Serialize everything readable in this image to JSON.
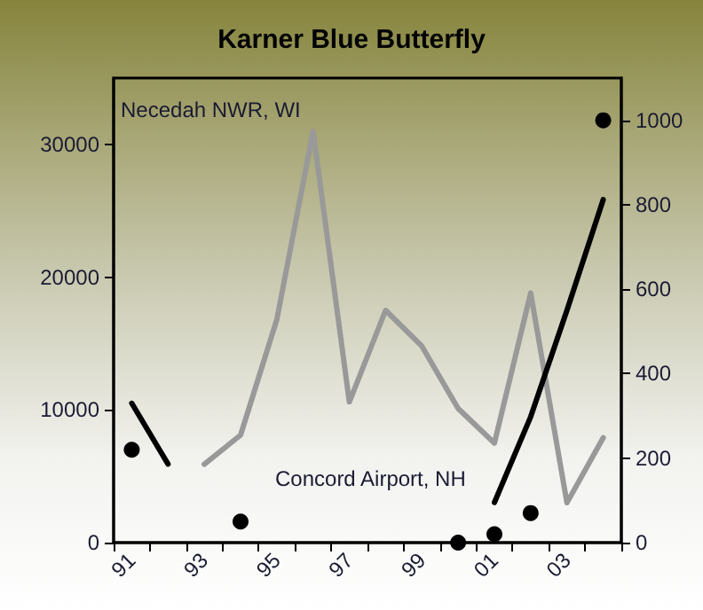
{
  "chart_data": {
    "type": "line",
    "title": "Karner Blue Butterfly",
    "annotations": [
      "Necedah NWR, WI",
      "Concord Airport, NH"
    ],
    "categories": [
      "91",
      null,
      "93",
      null,
      "95",
      null,
      "97",
      null,
      "99",
      null,
      "01",
      null,
      "03",
      null
    ],
    "ylim": [
      0,
      35000
    ],
    "yticks": [
      0,
      10000,
      20000,
      30000
    ],
    "y2lim": [
      0,
      1100
    ],
    "y2ticks": [
      0,
      200,
      400,
      600,
      800,
      1000
    ],
    "series": [
      {
        "color": "#999999",
        "marker": "none",
        "values": [
          null,
          null,
          5900,
          8100,
          16800,
          31000,
          10600,
          17500,
          14800,
          10100,
          7500,
          18800,
          3000,
          7900
        ]
      },
      {
        "type": "scatter",
        "color": "#000000",
        "marker": "circle",
        "axis": "y2",
        "values": [
          220,
          null,
          null,
          50,
          null,
          null,
          null,
          null,
          null,
          0,
          20,
          70,
          null,
          1000
        ]
      },
      {
        "color": "#000000",
        "marker": "none",
        "axis": "y2",
        "values": [
          330,
          186,
          null,
          null,
          null,
          null,
          null,
          null,
          null,
          null,
          95,
          298,
          550,
          812
        ]
      }
    ],
    "grid": false
  }
}
